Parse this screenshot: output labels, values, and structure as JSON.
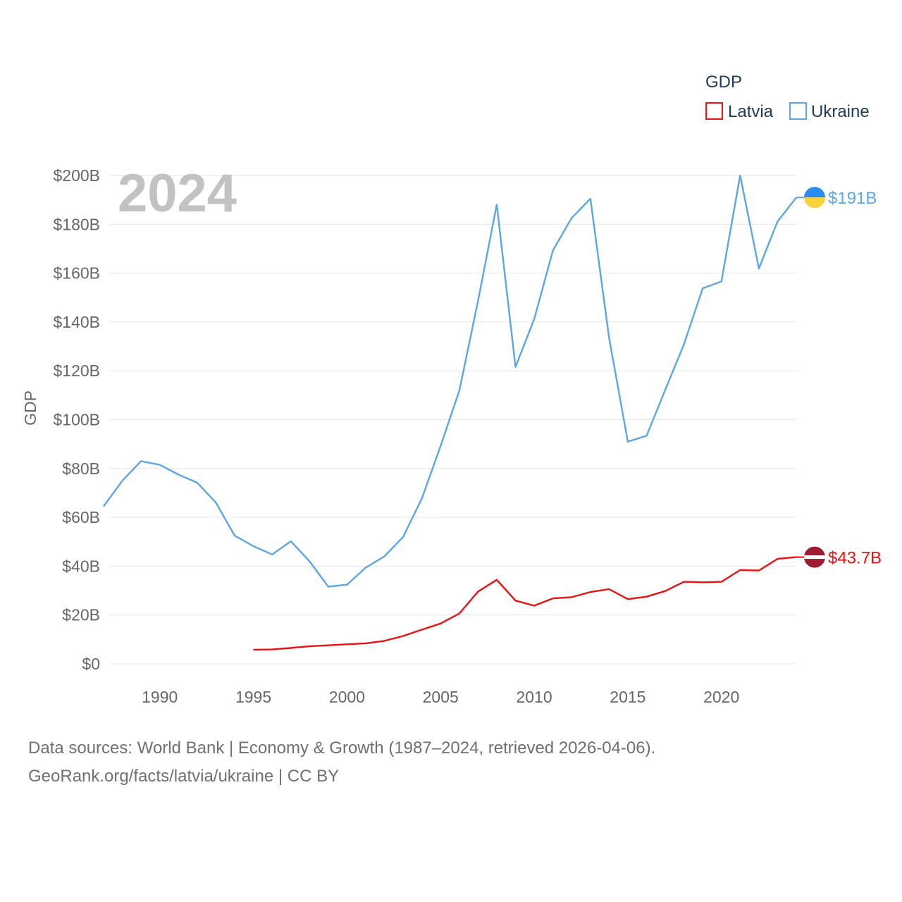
{
  "chart_data": {
    "type": "line",
    "year_label": "2024",
    "ylabel": "GDP",
    "xlim": [
      1987,
      2024
    ],
    "ylim": [
      0,
      200
    ],
    "x_ticks": [
      1990,
      1995,
      2000,
      2005,
      2010,
      2015,
      2020
    ],
    "x_tick_labels": [
      "1990",
      "1995",
      "2000",
      "2005",
      "2010",
      "2015",
      "2020"
    ],
    "y_ticks": [
      0,
      20,
      40,
      60,
      80,
      100,
      120,
      140,
      160,
      180,
      200
    ],
    "y_tick_labels": [
      "$0",
      "$20B",
      "$40B",
      "$60B",
      "$80B",
      "$100B",
      "$120B",
      "$140B",
      "$160B",
      "$180B",
      "$200B"
    ],
    "legend": {
      "title": "GDP",
      "position": "top-right"
    },
    "series": [
      {
        "name": "Latvia",
        "color": "#ee1111",
        "end_label": "$43.7B",
        "flag_colors": [
          "#9e1b32",
          "#ffffff",
          "#9e1b32"
        ],
        "x": [
          1995,
          1996,
          1997,
          1998,
          1999,
          2000,
          2001,
          2002,
          2003,
          2004,
          2005,
          2006,
          2007,
          2008,
          2009,
          2010,
          2011,
          2012,
          2013,
          2014,
          2015,
          2016,
          2017,
          2018,
          2019,
          2020,
          2021,
          2022,
          2023,
          2024
        ],
        "values": [
          5.8,
          5.9,
          6.5,
          7.2,
          7.6,
          8.0,
          8.4,
          9.4,
          11.4,
          14.0,
          16.5,
          20.6,
          29.6,
          34.4,
          25.9,
          23.8,
          26.8,
          27.3,
          29.4,
          30.6,
          26.5,
          27.5,
          29.8,
          33.6,
          33.4,
          33.6,
          38.4,
          38.2,
          43.0,
          43.7
        ]
      },
      {
        "name": "Ukraine",
        "color": "#5ca6e6",
        "end_label": "$191B",
        "flag_colors": [
          "#2a8bf2",
          "#f9d33a"
        ],
        "x": [
          1987,
          1988,
          1989,
          1990,
          1991,
          1992,
          1993,
          1994,
          1995,
          1996,
          1997,
          1998,
          1999,
          2000,
          2001,
          2002,
          2003,
          2004,
          2005,
          2006,
          2007,
          2008,
          2009,
          2010,
          2011,
          2012,
          2013,
          2014,
          2015,
          2016,
          2017,
          2018,
          2019,
          2020,
          2021,
          2022,
          2023,
          2024
        ],
        "values": [
          64.5,
          75,
          83,
          81.5,
          77.5,
          74.2,
          66,
          52.5,
          48.2,
          44.8,
          50.2,
          42,
          31.6,
          32.4,
          39.4,
          44,
          52,
          67.7,
          89.2,
          111.9,
          148.7,
          188.1,
          121.6,
          141.2,
          169.3,
          182.6,
          190.5,
          133.5,
          91,
          93.4,
          112.2,
          130.9,
          153.8,
          156.6,
          200,
          161.9,
          181.2,
          191.0
        ]
      }
    ]
  },
  "footer": {
    "line1": "Data sources: World Bank | Economy & Growth (1987–2024, retrieved 2026-04-06).",
    "line2": "GeoRank.org/facts/latvia/ukraine | CC BY"
  }
}
